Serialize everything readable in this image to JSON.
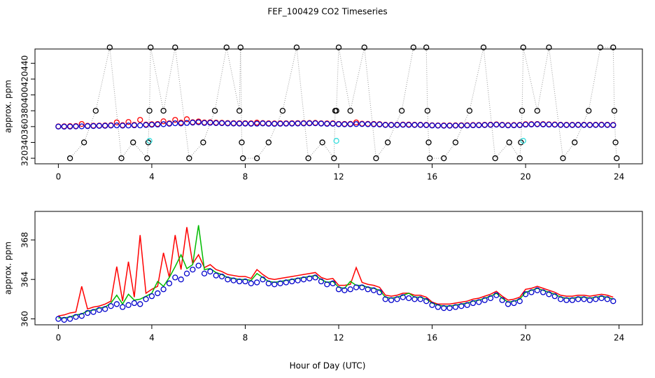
{
  "title": "FEF_100429  CO2 Timeseries",
  "xlabel": "Hour of Day (UTC)",
  "chart_data": [
    {
      "type": "scatter",
      "ylabel": "approx. ppm",
      "xlim": [
        -1,
        25
      ],
      "ylim": [
        313,
        458
      ],
      "xticks": [
        0,
        4,
        8,
        12,
        16,
        20,
        24
      ],
      "yticks": [
        320,
        340,
        360,
        380,
        400,
        420,
        440
      ],
      "x": [
        0,
        0.25,
        0.5,
        0.75,
        1,
        1.25,
        1.5,
        1.75,
        2,
        2.25,
        2.5,
        2.75,
        3,
        3.25,
        3.5,
        3.75,
        4,
        4.25,
        4.5,
        4.75,
        5,
        5.25,
        5.5,
        5.75,
        6,
        6.25,
        6.5,
        6.75,
        7,
        7.25,
        7.5,
        7.75,
        8,
        8.25,
        8.5,
        8.75,
        9,
        9.25,
        9.5,
        9.75,
        10,
        10.25,
        10.5,
        10.75,
        11,
        11.25,
        11.5,
        11.75,
        12,
        12.25,
        12.5,
        12.75,
        13,
        13.25,
        13.5,
        13.75,
        14,
        14.25,
        14.5,
        14.75,
        15,
        15.25,
        15.5,
        15.75,
        16,
        16.25,
        16.5,
        16.75,
        17,
        17.25,
        17.5,
        17.75,
        18,
        18.25,
        18.5,
        18.75,
        19,
        19.25,
        19.5,
        19.75,
        20,
        20.25,
        20.5,
        20.75,
        21,
        21.25,
        21.5,
        21.75,
        22,
        22.25,
        22.5,
        22.75,
        23,
        23.25,
        23.5,
        23.75
      ],
      "series": [
        {
          "color": "#000000",
          "style": "points-dotted",
          "x": [
            0.5,
            1.1,
            1.6,
            2.2,
            2.7,
            3.2,
            3.8,
            3.85,
            3.9,
            3.95,
            4.5,
            5.0,
            5.6,
            6.2,
            6.7,
            7.2,
            7.75,
            7.8,
            7.85,
            7.9,
            8.5,
            9.0,
            9.6,
            10.2,
            10.7,
            11.3,
            11.8,
            11.85,
            11.9,
            12.0,
            12.5,
            13.1,
            13.6,
            14.1,
            14.7,
            15.2,
            15.75,
            15.8,
            15.85,
            15.9,
            16.5,
            17.0,
            17.6,
            18.2,
            18.7,
            19.3,
            19.75,
            19.8,
            19.85,
            19.9,
            20.5,
            21.0,
            21.6,
            22.1,
            22.7,
            23.2,
            23.75,
            23.8,
            23.85,
            23.9
          ],
          "values": [
            320,
            340,
            380,
            460,
            320,
            340,
            320,
            340,
            380,
            460,
            380,
            460,
            320,
            340,
            380,
            460,
            380,
            460,
            340,
            320,
            320,
            340,
            380,
            460,
            320,
            340,
            320,
            380,
            380,
            460,
            380,
            460,
            320,
            340,
            380,
            460,
            460,
            380,
            340,
            320,
            320,
            340,
            380,
            460,
            320,
            340,
            320,
            340,
            380,
            460,
            380,
            460,
            320,
            340,
            380,
            460,
            460,
            380,
            340,
            320
          ]
        },
        {
          "color": "#ff0000",
          "style": "points",
          "values": [
            360.3,
            360.4,
            360.6,
            360.7,
            363.3,
            361.0,
            361.2,
            361.3,
            361.5,
            361.8,
            365.3,
            361.8,
            365.8,
            362.2,
            368.5,
            362.6,
            363.0,
            363.3,
            366.7,
            364.2,
            368.5,
            365.0,
            369.3,
            365.6,
            366.5,
            365.2,
            365.5,
            365.0,
            364.8,
            364.5,
            364.4,
            364.3,
            364.3,
            364.1,
            365.0,
            364.5,
            364.1,
            364.0,
            364.1,
            364.2,
            364.3,
            364.4,
            364.5,
            364.6,
            364.7,
            364.2,
            364.0,
            364.1,
            363.4,
            363.4,
            363.5,
            365.2,
            363.7,
            363.5,
            363.4,
            363.2,
            362.4,
            362.3,
            362.4,
            362.6,
            362.6,
            362.4,
            362.4,
            362.2,
            361.7,
            361.5,
            361.5,
            361.5,
            361.6,
            361.7,
            361.8,
            362.0,
            362.1,
            362.3,
            362.5,
            362.8,
            362.3,
            361.9,
            362.0,
            362.2,
            363.0,
            363.1,
            363.3,
            363.1,
            362.9,
            362.7,
            362.4,
            362.3,
            362.3,
            362.4,
            362.4,
            362.3,
            362.4,
            362.5,
            362.4,
            362.2
          ]
        },
        {
          "color": "#0000cc",
          "style": "points",
          "values": [
            360.0,
            359.9,
            360.0,
            360.2,
            360.3,
            360.6,
            360.7,
            360.9,
            361.0,
            361.3,
            361.5,
            361.2,
            361.4,
            361.6,
            361.5,
            362.0,
            362.3,
            362.6,
            363.0,
            363.6,
            364.2,
            364.0,
            364.6,
            365.0,
            365.4,
            364.6,
            364.8,
            364.4,
            364.3,
            364.0,
            363.9,
            363.8,
            363.8,
            363.6,
            363.7,
            364.0,
            363.6,
            363.5,
            363.6,
            363.7,
            363.8,
            363.9,
            364.0,
            364.1,
            364.2,
            363.8,
            363.5,
            363.6,
            363.0,
            362.9,
            363.0,
            363.2,
            363.2,
            363.0,
            362.9,
            362.7,
            362.0,
            361.9,
            362.0,
            362.2,
            362.1,
            362.0,
            362.0,
            361.8,
            361.4,
            361.2,
            361.1,
            361.1,
            361.2,
            361.3,
            361.4,
            361.6,
            361.7,
            361.9,
            362.1,
            362.4,
            361.9,
            361.5,
            361.6,
            361.8,
            362.5,
            362.7,
            362.9,
            362.7,
            362.5,
            362.3,
            362.0,
            361.9,
            361.9,
            362.0,
            362.0,
            361.9,
            362.0,
            362.1,
            362.0,
            361.8
          ]
        },
        {
          "color": "#33dddd",
          "style": "points",
          "x": [
            3.9,
            11.9,
            19.9
          ],
          "values": [
            342,
            342,
            342
          ]
        }
      ]
    },
    {
      "type": "line",
      "ylabel": "approx. ppm",
      "xlim": [
        -1,
        25
      ],
      "ylim": [
        359.4,
        370.9
      ],
      "xticks": [
        0,
        4,
        8,
        12,
        16,
        20,
        24
      ],
      "yticks": [
        360,
        364,
        368
      ],
      "x": [
        0,
        0.25,
        0.5,
        0.75,
        1,
        1.25,
        1.5,
        1.75,
        2,
        2.25,
        2.5,
        2.75,
        3,
        3.25,
        3.5,
        3.75,
        4,
        4.25,
        4.5,
        4.75,
        5,
        5.25,
        5.5,
        5.75,
        6,
        6.25,
        6.5,
        6.75,
        7,
        7.25,
        7.5,
        7.75,
        8,
        8.25,
        8.5,
        8.75,
        9,
        9.25,
        9.5,
        9.75,
        10,
        10.25,
        10.5,
        10.75,
        11,
        11.25,
        11.5,
        11.75,
        12,
        12.25,
        12.5,
        12.75,
        13,
        13.25,
        13.5,
        13.75,
        14,
        14.25,
        14.5,
        14.75,
        15,
        15.25,
        15.5,
        15.75,
        16,
        16.25,
        16.5,
        16.75,
        17,
        17.25,
        17.5,
        17.75,
        18,
        18.25,
        18.5,
        18.75,
        19,
        19.25,
        19.5,
        19.75,
        20,
        20.25,
        20.5,
        20.75,
        21,
        21.25,
        21.5,
        21.75,
        22,
        22.25,
        22.5,
        22.75,
        23,
        23.25,
        23.5,
        23.75
      ],
      "series": [
        {
          "color": "#ff0000",
          "style": "line",
          "values": [
            360.3,
            360.4,
            360.6,
            360.7,
            363.3,
            361.0,
            361.2,
            361.3,
            361.5,
            361.8,
            365.3,
            361.8,
            365.8,
            362.2,
            368.5,
            362.6,
            363.0,
            363.3,
            366.7,
            364.2,
            368.5,
            365.0,
            369.3,
            365.6,
            366.5,
            365.2,
            365.5,
            365.0,
            364.8,
            364.5,
            364.4,
            364.3,
            364.3,
            364.1,
            365.0,
            364.5,
            364.1,
            364.0,
            364.1,
            364.2,
            364.3,
            364.4,
            364.5,
            364.6,
            364.7,
            364.2,
            364.0,
            364.1,
            363.4,
            363.4,
            363.5,
            365.2,
            363.7,
            363.5,
            363.4,
            363.2,
            362.4,
            362.3,
            362.4,
            362.6,
            362.6,
            362.4,
            362.4,
            362.2,
            361.7,
            361.5,
            361.5,
            361.5,
            361.6,
            361.7,
            361.8,
            362.0,
            362.1,
            362.3,
            362.5,
            362.8,
            362.3,
            361.9,
            362.0,
            362.2,
            363.0,
            363.1,
            363.3,
            363.1,
            362.9,
            362.7,
            362.4,
            362.3,
            362.3,
            362.4,
            362.4,
            362.3,
            362.4,
            362.5,
            362.4,
            362.2
          ]
        },
        {
          "color": "#00bb00",
          "style": "line",
          "values": [
            360.1,
            360.1,
            360.2,
            360.4,
            360.5,
            360.8,
            360.9,
            361.1,
            361.2,
            361.6,
            362.4,
            361.5,
            362.5,
            361.9,
            362.0,
            362.3,
            362.6,
            363.8,
            363.3,
            364.2,
            365.3,
            366.5,
            365.1,
            365.5,
            369.5,
            365.0,
            365.1,
            364.7,
            364.5,
            364.2,
            364.1,
            364.0,
            364.0,
            363.9,
            364.6,
            364.2,
            363.8,
            363.7,
            363.8,
            363.9,
            364.0,
            364.1,
            364.2,
            364.3,
            364.4,
            364.0,
            363.7,
            363.8,
            363.2,
            363.1,
            363.8,
            363.4,
            363.4,
            363.2,
            363.1,
            362.9,
            362.2,
            362.1,
            362.2,
            362.4,
            362.6,
            362.2,
            362.2,
            362.0,
            361.6,
            361.4,
            361.3,
            361.3,
            361.4,
            361.5,
            361.6,
            361.8,
            361.9,
            362.1,
            362.3,
            362.6,
            362.1,
            361.7,
            361.8,
            362.0,
            362.7,
            362.9,
            363.1,
            362.9,
            362.7,
            362.5,
            362.2,
            362.1,
            362.1,
            362.2,
            362.2,
            362.1,
            362.2,
            362.3,
            362.2,
            362.0
          ]
        },
        {
          "color": "#0000cc",
          "style": "points",
          "values": [
            360.0,
            359.9,
            360.0,
            360.2,
            360.3,
            360.6,
            360.7,
            360.9,
            361.0,
            361.3,
            361.5,
            361.2,
            361.4,
            361.6,
            361.5,
            362.0,
            362.3,
            362.6,
            363.0,
            363.6,
            364.2,
            364.0,
            364.6,
            365.0,
            365.4,
            364.6,
            364.8,
            364.4,
            364.3,
            364.0,
            363.9,
            363.8,
            363.8,
            363.6,
            363.7,
            364.0,
            363.6,
            363.5,
            363.6,
            363.7,
            363.8,
            363.9,
            364.0,
            364.1,
            364.2,
            363.8,
            363.5,
            363.6,
            363.0,
            362.9,
            363.0,
            363.2,
            363.2,
            363.0,
            362.9,
            362.7,
            362.0,
            361.9,
            362.0,
            362.2,
            362.1,
            362.0,
            362.0,
            361.8,
            361.4,
            361.2,
            361.1,
            361.1,
            361.2,
            361.3,
            361.4,
            361.6,
            361.7,
            361.9,
            362.1,
            362.4,
            361.9,
            361.5,
            361.6,
            361.8,
            362.5,
            362.7,
            362.9,
            362.7,
            362.5,
            362.3,
            362.0,
            361.9,
            361.9,
            362.0,
            362.0,
            361.9,
            362.0,
            362.1,
            362.0,
            361.8
          ]
        }
      ]
    }
  ]
}
